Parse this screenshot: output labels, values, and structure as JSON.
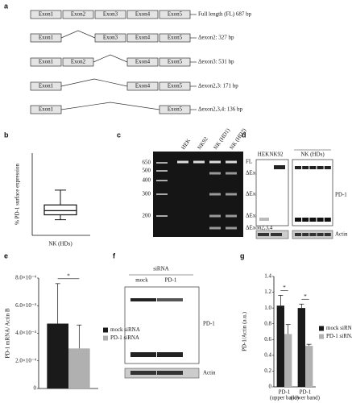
{
  "a": {
    "label": "a",
    "slots": [
      "Exon1",
      "Exon2",
      "Exon3",
      "Exon4",
      "Exon5"
    ],
    "rows": [
      {
        "exons": [
          "Exon1",
          "Exon2",
          "Exon3",
          "Exon4",
          "Exon5"
        ],
        "name": "Full length (FL) 687 bp"
      },
      {
        "exons": [
          "Exon1",
          "Exon3",
          "Exon4",
          "Exon5"
        ],
        "name": "Δexon2: 327 bp"
      },
      {
        "exons": [
          "Exon1",
          "Exon2",
          "Exon4",
          "Exon5"
        ],
        "name": "Δexon3: 531 bp"
      },
      {
        "exons": [
          "Exon1",
          "Exon4",
          "Exon5"
        ],
        "name": "Δexon2,3: 171 bp"
      },
      {
        "exons": [
          "Exon1",
          "Exon5"
        ],
        "name": "Δexon2,3,4: 136 bp"
      }
    ]
  },
  "b": {
    "label": "b",
    "type": "box",
    "ylabel": "% PD-1 surface expression",
    "category": "NK (HDs)",
    "ylim": [
      0,
      10
    ],
    "min": 1.9,
    "q1": 2.5,
    "median": 3.0,
    "q3": 3.7,
    "max": 5.5
  },
  "c": {
    "label": "c",
    "lanes": [
      "HEK",
      "NK92",
      "NK (HD1)",
      "NK (HD2)"
    ],
    "ladder": [
      650,
      500,
      400,
      300,
      200
    ],
    "bands": [
      "FL",
      "ΔExon3",
      "ΔExon2",
      "ΔExon2,3",
      "ΔExon2,3,4"
    ]
  },
  "d": {
    "label": "d",
    "lanes": [
      "HEK",
      "NK92"
    ],
    "group": "NK (HDs)",
    "protein": "PD-1",
    "loading": "Actin"
  },
  "e": {
    "label": "e",
    "type": "bar",
    "ylabel": "PD-1 mRNA/ Actin B",
    "ylim": [
      0,
      0.0008
    ],
    "yticks": [
      0,
      {
        "value": 0.0002,
        "label": "2.0×10⁻⁴"
      },
      {
        "value": 0.0004,
        "label": "4.0×10⁻⁴"
      },
      {
        "value": 0.0006,
        "label": "6.0×10⁻⁴"
      },
      {
        "value": 0.0008,
        "label": "8.0×10⁻⁴"
      }
    ],
    "series": [
      {
        "name": "mock siRNA",
        "color": "#1a1a1a",
        "values": [
          0.00047
        ],
        "errors": [
          0.00029
        ]
      },
      {
        "name": "PD-1 siRNA",
        "color": "#b0b0b0",
        "values": [
          0.00029
        ],
        "errors": [
          0.00017
        ]
      }
    ],
    "significance": [
      "*"
    ]
  },
  "f": {
    "label": "f",
    "header": "siRNA",
    "lanes": [
      "mock",
      "PD-1"
    ],
    "protein": "PD-1",
    "loading": "Actin"
  },
  "g": {
    "label": "g",
    "type": "bar",
    "ylabel": "PD-1/Actin (a.u.)",
    "categories": [
      "PD-1",
      "PD-1"
    ],
    "category_notes": [
      "(upper band)",
      "(lower band)"
    ],
    "ylim": [
      0,
      1.4
    ],
    "yticks": [
      0,
      0.2,
      0.4,
      0.6,
      0.8,
      {
        "value": 1,
        "label": "1.0"
      },
      1.2,
      1.4
    ],
    "series": [
      {
        "name": "mock siRNA",
        "color": "#1a1a1a",
        "values": [
          1.03,
          1.0
        ],
        "errors": [
          0.13,
          0.05
        ]
      },
      {
        "name": "PD-1 siRNA",
        "color": "#b0b0b0",
        "values": [
          0.67,
          0.52
        ],
        "errors": [
          0.12,
          0.02
        ]
      }
    ],
    "significance": [
      "*",
      "*"
    ]
  }
}
